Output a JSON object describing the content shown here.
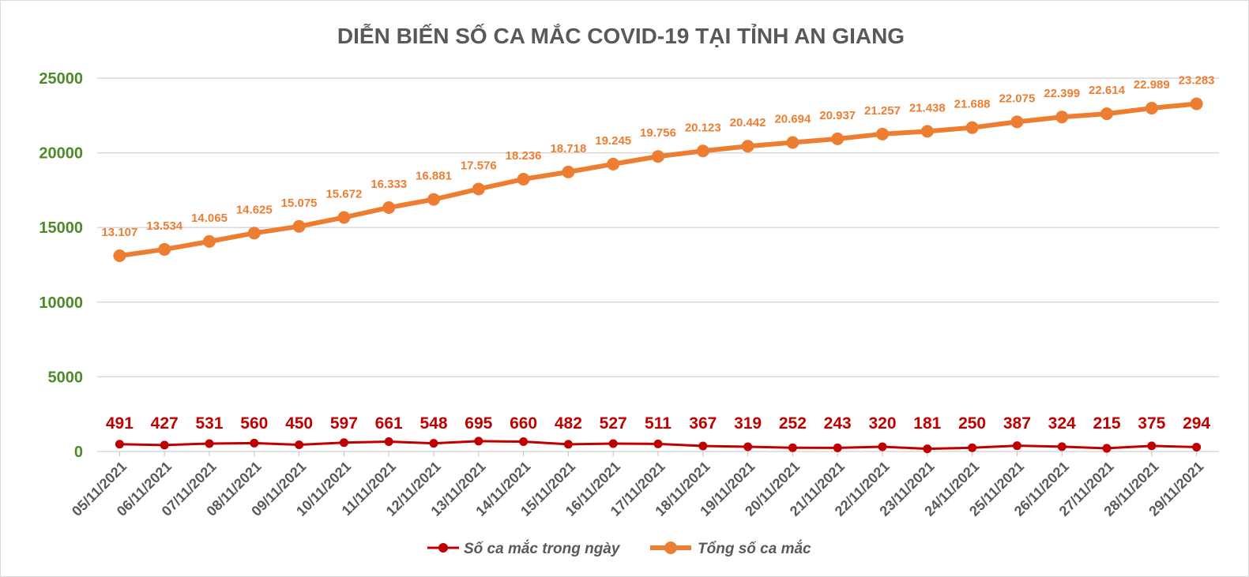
{
  "chart_data": {
    "type": "line",
    "title": "DIỄN BIẾN SỐ CA MẮC COVID-19 TẠI TỈNH AN GIANG",
    "xlabel": "",
    "ylabel": "",
    "ylim": [
      0,
      25000
    ],
    "yticks": [
      "0",
      "5000",
      "10000",
      "15000",
      "20000",
      "25000"
    ],
    "grid": true,
    "legend_position": "bottom",
    "categories": [
      "05/11/2021",
      "06/11/2021",
      "07/11/2021",
      "08/11/2021",
      "09/11/2021",
      "10/11/2021",
      "11/11/2021",
      "12/11/2021",
      "13/11/2021",
      "14/11/2021",
      "15/11/2021",
      "16/11/2021",
      "17/11/2021",
      "18/11/2021",
      "19/11/2021",
      "20/11/2021",
      "21/11/2021",
      "22/11/2021",
      "23/11/2021",
      "24/11/2021",
      "25/11/2021",
      "26/11/2021",
      "27/11/2021",
      "28/11/2021",
      "29/11/2021"
    ],
    "series": [
      {
        "name": "Số ca mắc trong ngày",
        "color": "#c00000",
        "values": [
          491,
          427,
          531,
          560,
          450,
          597,
          661,
          548,
          695,
          660,
          482,
          527,
          511,
          367,
          319,
          252,
          243,
          320,
          181,
          250,
          387,
          324,
          215,
          375,
          294
        ],
        "labels": [
          "491",
          "427",
          "531",
          "560",
          "450",
          "597",
          "661",
          "548",
          "695",
          "660",
          "482",
          "527",
          "511",
          "367",
          "319",
          "252",
          "243",
          "320",
          "181",
          "250",
          "387",
          "324",
          "215",
          "375",
          "294"
        ]
      },
      {
        "name": "Tổng số ca mắc",
        "color": "#ed7d31",
        "values": [
          13107,
          13534,
          14065,
          14625,
          15075,
          15672,
          16333,
          16881,
          17576,
          18236,
          18718,
          19245,
          19756,
          20123,
          20442,
          20694,
          20937,
          21257,
          21438,
          21688,
          22075,
          22399,
          22614,
          22989,
          23283
        ],
        "labels": [
          "13.107",
          "13.534",
          "14.065",
          "14.625",
          "15.075",
          "15.672",
          "16.333",
          "16.881",
          "17.576",
          "18.236",
          "18.718",
          "19.245",
          "19.756",
          "20.123",
          "20.442",
          "20.694",
          "20.937",
          "21.257",
          "21.438",
          "21.688",
          "22.075",
          "22.399",
          "22.614",
          "22.989",
          "23.283"
        ]
      }
    ]
  }
}
